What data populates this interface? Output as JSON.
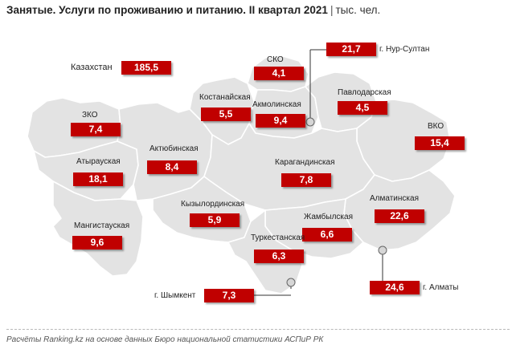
{
  "title": {
    "bold": "Занятые. Услуги по проживанию и питанию. II квартал 2021",
    "separator": "|",
    "unit": "тыс. чел."
  },
  "regions": {
    "kazakhstan": {
      "label": "Казахстан",
      "value": "185,5"
    },
    "sko": {
      "label": "СКО",
      "value": "4,1"
    },
    "nur_sultan": {
      "label": "г. Нур-Султан",
      "value": "21,7"
    },
    "kostanay": {
      "label": "Костанайская",
      "value": "5,5"
    },
    "akmola": {
      "label": "Акмолинская",
      "value": "9,4"
    },
    "pavlodar": {
      "label": "Павлодарская",
      "value": "4,5"
    },
    "zko": {
      "label": "ЗКО",
      "value": "7,4"
    },
    "vko": {
      "label": "ВКО",
      "value": "15,4"
    },
    "atyrau": {
      "label": "Атырауская",
      "value": "18,1"
    },
    "aktobe": {
      "label": "Актюбинская",
      "value": "8,4"
    },
    "karaganda": {
      "label": "Карагандинская",
      "value": "7,8"
    },
    "kyzylorda": {
      "label": "Кызылординская",
      "value": "5,9"
    },
    "almaty_region": {
      "label": "Алматинская",
      "value": "22,6"
    },
    "mangystau": {
      "label": "Мангистауская",
      "value": "9,6"
    },
    "zhambyl": {
      "label": "Жамбылская",
      "value": "6,6"
    },
    "turkestan": {
      "label": "Туркестанская",
      "value": "6,3"
    },
    "almaty_city": {
      "label": "г. Алматы",
      "value": "24,6"
    },
    "shymkent": {
      "label": "г. Шымкент",
      "value": "7,3"
    }
  },
  "source": "Расчёты Ranking.kz на основе данных Бюро национальной статистики АСПиР РК",
  "colors": {
    "value_box": "#c00000",
    "map_fill": "#e3e3e3",
    "border": "#ffffff"
  }
}
